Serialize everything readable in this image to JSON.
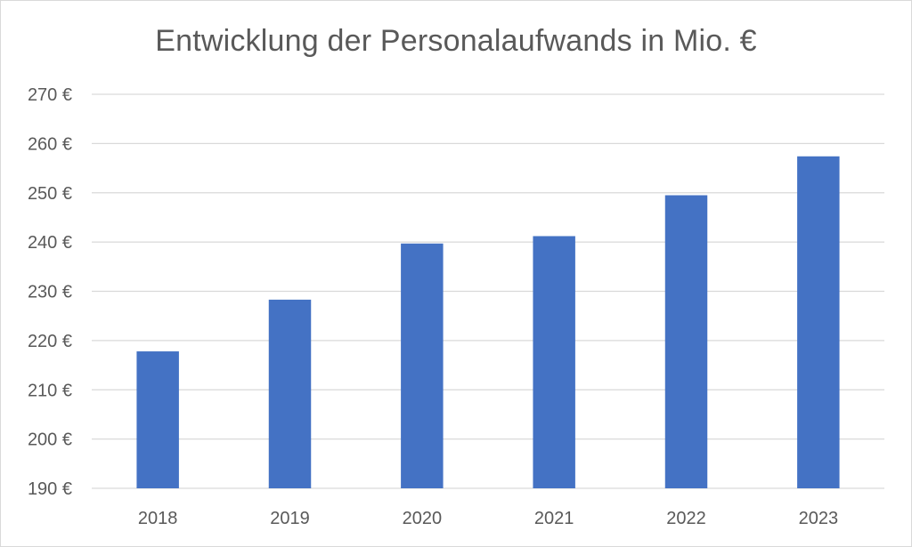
{
  "chart_data": {
    "type": "bar",
    "title": "Entwicklung der Personalaufwands in Mio. €",
    "xlabel": "",
    "ylabel": "",
    "categories": [
      "2018",
      "2019",
      "2020",
      "2021",
      "2022",
      "2023"
    ],
    "values": [
      217.8,
      228.3,
      239.7,
      241.2,
      249.5,
      257.4
    ],
    "ylim": [
      190,
      270
    ],
    "yticks": [
      190,
      200,
      210,
      220,
      230,
      240,
      250,
      260,
      270
    ],
    "ytick_suffix": " €",
    "grid": true,
    "legend": "none",
    "bar_color": "#4472c4",
    "grid_color": "#d9d9d9",
    "text_color": "#595959"
  }
}
